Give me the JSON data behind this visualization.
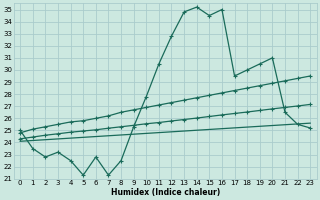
{
  "xlabel": "Humidex (Indice chaleur)",
  "bg_color": "#cce8e0",
  "grid_color": "#aacccc",
  "line_color": "#1a6b5a",
  "xlim": [
    -0.5,
    23.5
  ],
  "ylim": [
    21.0,
    35.5
  ],
  "xticks": [
    0,
    1,
    2,
    3,
    4,
    5,
    6,
    7,
    8,
    9,
    10,
    11,
    12,
    13,
    14,
    15,
    16,
    17,
    18,
    19,
    20,
    21,
    22,
    23
  ],
  "yticks": [
    21,
    22,
    23,
    24,
    25,
    26,
    27,
    28,
    29,
    30,
    31,
    32,
    33,
    34,
    35
  ],
  "line1_x": [
    0,
    1,
    2,
    3,
    4,
    5,
    6,
    7,
    8,
    9,
    10,
    11,
    12,
    13,
    14,
    15,
    16,
    17,
    18,
    19,
    20,
    21,
    22,
    23
  ],
  "line1_y": [
    25.0,
    23.5,
    22.8,
    23.2,
    22.5,
    21.3,
    22.8,
    21.3,
    22.5,
    25.3,
    27.8,
    30.5,
    32.8,
    34.8,
    35.2,
    34.5,
    35.0,
    29.5,
    30.0,
    30.5,
    31.0,
    26.5,
    25.5,
    25.2
  ],
  "line2_x": [
    0,
    1,
    2,
    3,
    4,
    5,
    6,
    7,
    8,
    9,
    10,
    11,
    12,
    13,
    14,
    15,
    16,
    17,
    18,
    19,
    20,
    21,
    22,
    23
  ],
  "line2_y": [
    24.8,
    25.1,
    25.3,
    25.5,
    25.7,
    25.8,
    26.0,
    26.2,
    26.5,
    26.7,
    26.9,
    27.1,
    27.3,
    27.5,
    27.7,
    27.9,
    28.1,
    28.3,
    28.5,
    28.7,
    28.9,
    29.1,
    29.3,
    29.5
  ],
  "line3_x": [
    0,
    1,
    2,
    3,
    4,
    5,
    6,
    7,
    8,
    9,
    10,
    11,
    12,
    13,
    14,
    15,
    16,
    17,
    18,
    19,
    20,
    21,
    22,
    23
  ],
  "line3_y": [
    24.3,
    24.45,
    24.6,
    24.72,
    24.85,
    24.95,
    25.05,
    25.18,
    25.3,
    25.42,
    25.55,
    25.65,
    25.78,
    25.9,
    26.02,
    26.15,
    26.28,
    26.4,
    26.52,
    26.65,
    26.78,
    26.9,
    27.02,
    27.15
  ],
  "line4_x": [
    0,
    23
  ],
  "line4_y": [
    24.1,
    25.6
  ]
}
